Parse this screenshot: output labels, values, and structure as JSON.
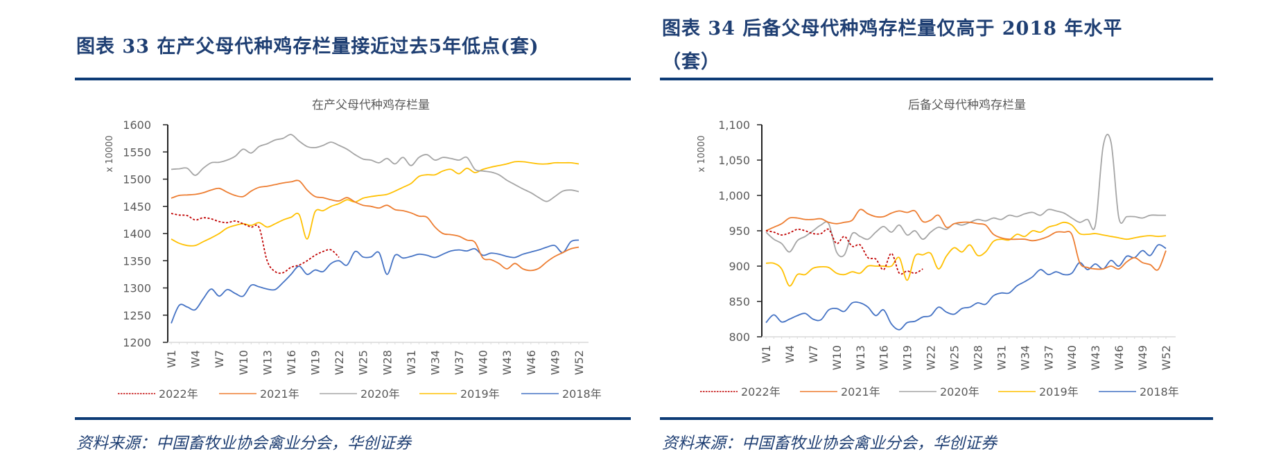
{
  "figures": [
    {
      "heading": "图表 33   在产父母代种鸡存栏量接近过去5年低点(套)",
      "heading_lines": [
        "图表 33   在产父母代种鸡存栏量接近过去5年低点(套)"
      ],
      "source": "资料来源：中国畜牧业协会禽业分会，华创证券"
    },
    {
      "heading": "图表 34   后备父母代种鸡存栏量仅高于2018年水平（套）",
      "heading_lines": [
        "图表 34   后备父母代种鸡存栏量仅高于 2018 年水平",
        "（套）"
      ],
      "source": "资料来源：中国畜牧业协会禽业分会，华创证券"
    }
  ],
  "chart_data": [
    {
      "type": "line",
      "title": "在产父母代种鸡存栏量",
      "xlabel": "",
      "ylabel": "x 10000",
      "ylim": [
        1200,
        1600
      ],
      "yticks": [
        "1600",
        "1550",
        "1500",
        "1450",
        "1400",
        "1350",
        "1300",
        "1250",
        "1200"
      ],
      "ytick_values": [
        1600,
        1550,
        1500,
        1450,
        1400,
        1350,
        1300,
        1250,
        1200
      ],
      "xtick_labels": [
        "W1",
        "W4",
        "W7",
        "W10",
        "W13",
        "W16",
        "W19",
        "W22",
        "W25",
        "W28",
        "W31",
        "W34",
        "W37",
        "W40",
        "W43",
        "W46",
        "W49",
        "W52"
      ],
      "weeks": 52,
      "grid": false,
      "legend": "bottom",
      "series": [
        {
          "name": "2022年",
          "color": "#c00000",
          "dashed": true,
          "values": [
            1437,
            1434,
            1433,
            1425,
            1429,
            1427,
            1422,
            1420,
            1423,
            1418,
            1412,
            1411,
            1350,
            1330,
            1328,
            1338,
            1342,
            1350,
            1360,
            1367,
            1370,
            1356
          ]
        },
        {
          "name": "2021年",
          "color": "#ed7d31",
          "dashed": false,
          "values": [
            1465,
            1470,
            1471,
            1472,
            1475,
            1480,
            1483,
            1476,
            1470,
            1468,
            1478,
            1485,
            1487,
            1490,
            1493,
            1495,
            1497,
            1480,
            1468,
            1466,
            1462,
            1460,
            1466,
            1458,
            1452,
            1450,
            1447,
            1452,
            1444,
            1442,
            1438,
            1432,
            1430,
            1412,
            1400,
            1398,
            1395,
            1388,
            1384,
            1355,
            1352,
            1345,
            1335,
            1345,
            1335,
            1332,
            1336,
            1348,
            1358,
            1365,
            1372,
            1375
          ]
        },
        {
          "name": "2020年",
          "color": "#a5a5a5",
          "dashed": false,
          "values": [
            1518,
            1519,
            1520,
            1507,
            1520,
            1530,
            1531,
            1535,
            1542,
            1555,
            1548,
            1560,
            1565,
            1572,
            1575,
            1582,
            1570,
            1560,
            1558,
            1562,
            1568,
            1562,
            1555,
            1545,
            1537,
            1535,
            1530,
            1538,
            1528,
            1540,
            1525,
            1540,
            1545,
            1535,
            1540,
            1538,
            1535,
            1540,
            1518,
            1515,
            1513,
            1508,
            1498,
            1490,
            1482,
            1475,
            1466,
            1459,
            1468,
            1478,
            1480,
            1477
          ]
        },
        {
          "name": "2019年",
          "color": "#ffc000",
          "dashed": false,
          "values": [
            1390,
            1382,
            1378,
            1378,
            1385,
            1392,
            1400,
            1410,
            1415,
            1418,
            1415,
            1420,
            1412,
            1418,
            1425,
            1430,
            1435,
            1390,
            1440,
            1442,
            1450,
            1455,
            1462,
            1458,
            1465,
            1468,
            1470,
            1472,
            1478,
            1485,
            1492,
            1505,
            1508,
            1508,
            1515,
            1518,
            1510,
            1520,
            1512,
            1518,
            1522,
            1525,
            1528,
            1532,
            1532,
            1530,
            1528,
            1528,
            1530,
            1530,
            1530,
            1528
          ]
        },
        {
          "name": "2018年",
          "color": "#4472c4",
          "dashed": false,
          "values": [
            1235,
            1268,
            1265,
            1260,
            1280,
            1298,
            1285,
            1297,
            1290,
            1285,
            1305,
            1302,
            1298,
            1297,
            1310,
            1325,
            1340,
            1325,
            1333,
            1330,
            1345,
            1350,
            1342,
            1367,
            1357,
            1357,
            1365,
            1325,
            1360,
            1355,
            1358,
            1362,
            1360,
            1356,
            1362,
            1368,
            1370,
            1368,
            1372,
            1360,
            1364,
            1362,
            1358,
            1356,
            1362,
            1366,
            1370,
            1375,
            1378,
            1365,
            1385,
            1388
          ]
        }
      ]
    },
    {
      "type": "line",
      "title": "后备父母代种鸡存栏量",
      "xlabel": "",
      "ylabel": "x 10000",
      "ylim": [
        800,
        1100
      ],
      "yticks": [
        "1,100",
        "1,050",
        "1,000",
        "950",
        "900",
        "850",
        "800"
      ],
      "ytick_values": [
        1100,
        1050,
        1000,
        950,
        900,
        850,
        800
      ],
      "xtick_labels": [
        "W1",
        "W4",
        "W7",
        "W10",
        "W13",
        "W16",
        "W19",
        "W22",
        "W25",
        "W28",
        "W31",
        "W34",
        "W37",
        "W40",
        "W43",
        "W46",
        "W49",
        "W52"
      ],
      "weeks": 52,
      "grid": false,
      "legend": "bottom",
      "series": [
        {
          "name": "2022年",
          "color": "#c00000",
          "dashed": true,
          "values": [
            950,
            948,
            944,
            947,
            952,
            950,
            946,
            946,
            952,
            932,
            942,
            928,
            930,
            912,
            910,
            895,
            918,
            890,
            893,
            890,
            896
          ]
        },
        {
          "name": "2021年",
          "color": "#ed7d31",
          "dashed": false,
          "values": [
            950,
            955,
            960,
            968,
            968,
            966,
            966,
            967,
            962,
            960,
            962,
            965,
            980,
            974,
            970,
            970,
            975,
            978,
            976,
            978,
            963,
            965,
            972,
            955,
            960,
            962,
            962,
            960,
            958,
            945,
            940,
            938,
            938,
            938,
            936,
            938,
            942,
            948,
            948,
            945,
            905,
            898,
            896,
            896,
            900,
            896,
            906,
            912,
            905,
            902,
            895,
            922
          ]
        },
        {
          "name": "2020年",
          "color": "#a5a5a5",
          "dashed": false,
          "values": [
            948,
            938,
            932,
            920,
            936,
            942,
            950,
            958,
            960,
            920,
            916,
            946,
            942,
            938,
            948,
            956,
            948,
            958,
            944,
            950,
            938,
            948,
            955,
            952,
            960,
            958,
            962,
            966,
            964,
            968,
            966,
            972,
            970,
            974,
            976,
            972,
            980,
            978,
            975,
            968,
            962,
            966,
            958,
            1070,
            1075,
            968,
            970,
            970,
            968,
            972,
            972,
            972
          ]
        },
        {
          "name": "2019年",
          "color": "#ffc000",
          "dashed": false,
          "values": [
            904,
            904,
            896,
            872,
            888,
            888,
            897,
            899,
            898,
            890,
            888,
            892,
            890,
            900,
            900,
            900,
            900,
            912,
            880,
            914,
            916,
            918,
            896,
            914,
            926,
            920,
            930,
            915,
            920,
            935,
            938,
            937,
            945,
            942,
            950,
            948,
            955,
            958,
            962,
            958,
            946,
            945,
            946,
            944,
            942,
            940,
            938,
            940,
            942,
            943,
            942,
            943
          ]
        },
        {
          "name": "2018年",
          "color": "#4472c4",
          "dashed": false,
          "values": [
            820,
            831,
            821,
            825,
            830,
            833,
            825,
            824,
            838,
            840,
            836,
            848,
            848,
            842,
            830,
            838,
            818,
            810,
            820,
            822,
            828,
            830,
            842,
            835,
            832,
            840,
            842,
            848,
            846,
            858,
            862,
            862,
            872,
            878,
            885,
            895,
            888,
            892,
            888,
            890,
            905,
            895,
            903,
            896,
            908,
            900,
            914,
            912,
            922,
            915,
            930,
            925
          ]
        }
      ]
    }
  ]
}
